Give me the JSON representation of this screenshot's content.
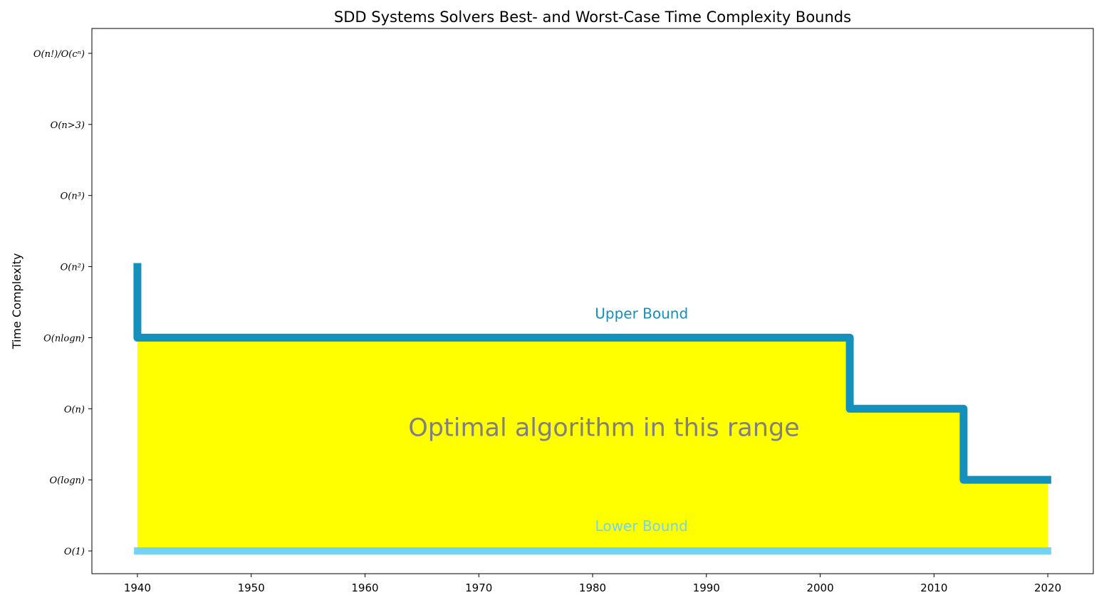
{
  "chart_data": {
    "type": "line",
    "title": "SDD Systems Solvers Best- and Worst-Case Time Complexity Bounds",
    "ylabel": "Time Complexity",
    "xlabel": "",
    "xlim": [
      1936,
      2024
    ],
    "ylim": [
      -0.32,
      7.35
    ],
    "xticks": [
      1940,
      1950,
      1960,
      1970,
      1980,
      1990,
      2000,
      2010,
      2020
    ],
    "yticks": [
      {
        "value": 0,
        "label": "O(1)"
      },
      {
        "value": 1,
        "label": "O(logn)"
      },
      {
        "value": 2,
        "label": "O(n)"
      },
      {
        "value": 3,
        "label": "O(nlogn)"
      },
      {
        "value": 4,
        "label": "O(n²)"
      },
      {
        "value": 5,
        "label": "O(n³)"
      },
      {
        "value": 6,
        "label": "O(n>3)"
      },
      {
        "value": 7,
        "label": "O(n!)/O(cⁿ)"
      }
    ],
    "series": [
      {
        "name": "Upper Bound",
        "color": "#1490bd",
        "points": [
          [
            1940,
            4.05
          ],
          [
            1940,
            3
          ],
          [
            2002.6,
            3
          ],
          [
            2002.6,
            2
          ],
          [
            2012.6,
            2
          ],
          [
            2012.6,
            1
          ],
          [
            2020.3,
            1
          ]
        ]
      },
      {
        "name": "Lower Bound",
        "color": "#74d3f2",
        "points": [
          [
            1939.7,
            0
          ],
          [
            2020.3,
            0
          ]
        ]
      }
    ],
    "fill": {
      "color": "#ffff00",
      "points": [
        [
          1940,
          0
        ],
        [
          1940,
          3
        ],
        [
          2002.6,
          3
        ],
        [
          2002.6,
          2
        ],
        [
          2012.6,
          2
        ],
        [
          2012.6,
          1
        ],
        [
          2020,
          1
        ],
        [
          2020,
          0
        ]
      ]
    },
    "annotations": [
      {
        "text": "Upper Bound",
        "x": 1984.3,
        "y": 3.27,
        "color": "#1490bd",
        "role": "upper"
      },
      {
        "text": "Lower Bound",
        "x": 1984.3,
        "y": 0.28,
        "color": "#74d3f2",
        "role": "lower"
      },
      {
        "text": "Optimal algorithm in this range",
        "x": 1981,
        "y": 1.62,
        "color": "#808080",
        "role": "center"
      }
    ],
    "grid": false,
    "legend": "none"
  }
}
